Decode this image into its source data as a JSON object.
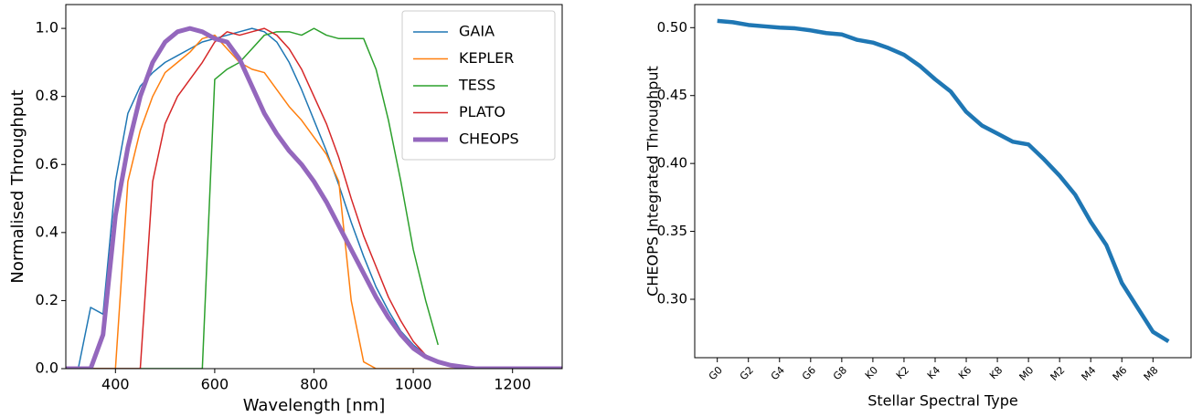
{
  "chart_data": [
    {
      "type": "line",
      "xlabel": "Wavelength [nm]",
      "ylabel": "Normalised Throughput",
      "x": [
        300,
        325,
        350,
        375,
        400,
        425,
        450,
        475,
        500,
        525,
        550,
        575,
        600,
        625,
        650,
        675,
        700,
        725,
        750,
        775,
        800,
        825,
        850,
        875,
        900,
        925,
        950,
        975,
        1000,
        1025,
        1050,
        1075,
        1100,
        1125,
        1150,
        1175,
        1200,
        1225,
        1250,
        1275,
        1300
      ],
      "xlim": [
        300,
        1300
      ],
      "xticks": [
        400,
        600,
        800,
        1000,
        1200
      ],
      "ylim": [
        0,
        1.07
      ],
      "yticks": [
        {
          "value": 0,
          "label": "0.0"
        },
        0.2,
        0.4,
        0.6,
        0.8,
        {
          "value": 1,
          "label": "1.0"
        }
      ],
      "legend": "upper right",
      "series": [
        {
          "name": "GAIA",
          "color": "#1f77b4",
          "linewidth": 1.5,
          "values": [
            0,
            0,
            0.18,
            0.16,
            0.55,
            0.75,
            0.83,
            0.87,
            0.9,
            0.92,
            0.94,
            0.96,
            0.97,
            0.98,
            0.99,
            1.0,
            0.99,
            0.96,
            0.9,
            0.82,
            0.73,
            0.64,
            0.54,
            0.43,
            0.33,
            0.24,
            0.17,
            0.11,
            0.07,
            0.04,
            0.02,
            0.01,
            0.005,
            0,
            0,
            0,
            0,
            0,
            0,
            0,
            0
          ]
        },
        {
          "name": "KEPLER",
          "color": "#ff7f0e",
          "linewidth": 1.5,
          "values": [
            0,
            0,
            0,
            0,
            0,
            0.55,
            0.7,
            0.8,
            0.87,
            0.9,
            0.93,
            0.97,
            0.98,
            0.94,
            0.9,
            0.88,
            0.87,
            0.82,
            0.77,
            0.73,
            0.68,
            0.63,
            0.55,
            0.2,
            0.02,
            0,
            0,
            0,
            0,
            0,
            0,
            0,
            0,
            0,
            0,
            0,
            0,
            0,
            0,
            0,
            0
          ]
        },
        {
          "name": "TESS",
          "color": "#2ca02c",
          "linewidth": 1.5,
          "values": [
            0,
            0,
            0,
            0,
            0,
            0,
            0,
            0,
            0,
            0,
            0,
            0,
            0.85,
            0.88,
            0.9,
            0.94,
            0.98,
            0.99,
            0.99,
            0.98,
            1.0,
            0.98,
            0.97,
            0.97,
            0.97,
            0.88,
            0.73,
            0.55,
            0.35,
            0.2,
            0.07,
            null,
            null,
            null,
            null,
            null,
            null,
            null,
            null,
            null,
            null
          ]
        },
        {
          "name": "PLATO",
          "color": "#d62728",
          "linewidth": 1.5,
          "values": [
            0,
            0,
            0,
            0,
            0,
            0,
            0,
            0.55,
            0.72,
            0.8,
            0.85,
            0.9,
            0.96,
            0.99,
            0.98,
            0.99,
            1.0,
            0.98,
            0.94,
            0.88,
            0.8,
            0.72,
            0.62,
            0.5,
            0.39,
            0.3,
            0.21,
            0.14,
            0.08,
            0.04,
            0.02,
            0.01,
            0,
            0,
            0,
            0,
            0,
            0,
            0,
            0,
            0
          ]
        },
        {
          "name": "CHEOPS",
          "color": "#9467bd",
          "linewidth": 5,
          "values": [
            0,
            0,
            0,
            0.1,
            0.45,
            0.65,
            0.8,
            0.9,
            0.96,
            0.99,
            1.0,
            0.99,
            0.97,
            0.96,
            0.91,
            0.83,
            0.75,
            0.69,
            0.64,
            0.6,
            0.55,
            0.49,
            0.42,
            0.35,
            0.28,
            0.21,
            0.15,
            0.1,
            0.06,
            0.035,
            0.02,
            0.01,
            0.005,
            0,
            0,
            0,
            0,
            0,
            0,
            0,
            0
          ]
        }
      ]
    },
    {
      "type": "line",
      "xlabel": "Stellar Spectral Type",
      "ylabel": "CHEOPS Integrated Throughput",
      "categories": [
        "G0",
        null,
        "G2",
        null,
        "G4",
        null,
        "G6",
        null,
        "G8",
        null,
        "K0",
        null,
        "K2",
        null,
        "K4",
        null,
        "K6",
        null,
        "K8",
        null,
        "M0",
        null,
        "M2",
        null,
        "M4",
        null,
        "M6",
        null,
        "M8",
        null
      ],
      "values": [
        0.505,
        0.504,
        0.502,
        0.501,
        0.5,
        0.4995,
        0.498,
        0.496,
        0.495,
        0.491,
        0.489,
        0.485,
        0.48,
        0.472,
        0.462,
        0.453,
        0.438,
        0.428,
        0.422,
        0.416,
        0.414,
        0.403,
        0.391,
        0.377,
        0.357,
        0.34,
        0.312,
        0.294,
        0.276,
        0.269
      ],
      "color": "#1f77b4",
      "linewidth": 4.5,
      "ylim": [
        0.257,
        0.517
      ],
      "yticks": [
        {
          "value": 0.3,
          "label": "0.30"
        },
        0.35,
        {
          "value": 0.4,
          "label": "0.40"
        },
        0.45,
        {
          "value": 0.5,
          "label": "0.50"
        }
      ]
    }
  ]
}
